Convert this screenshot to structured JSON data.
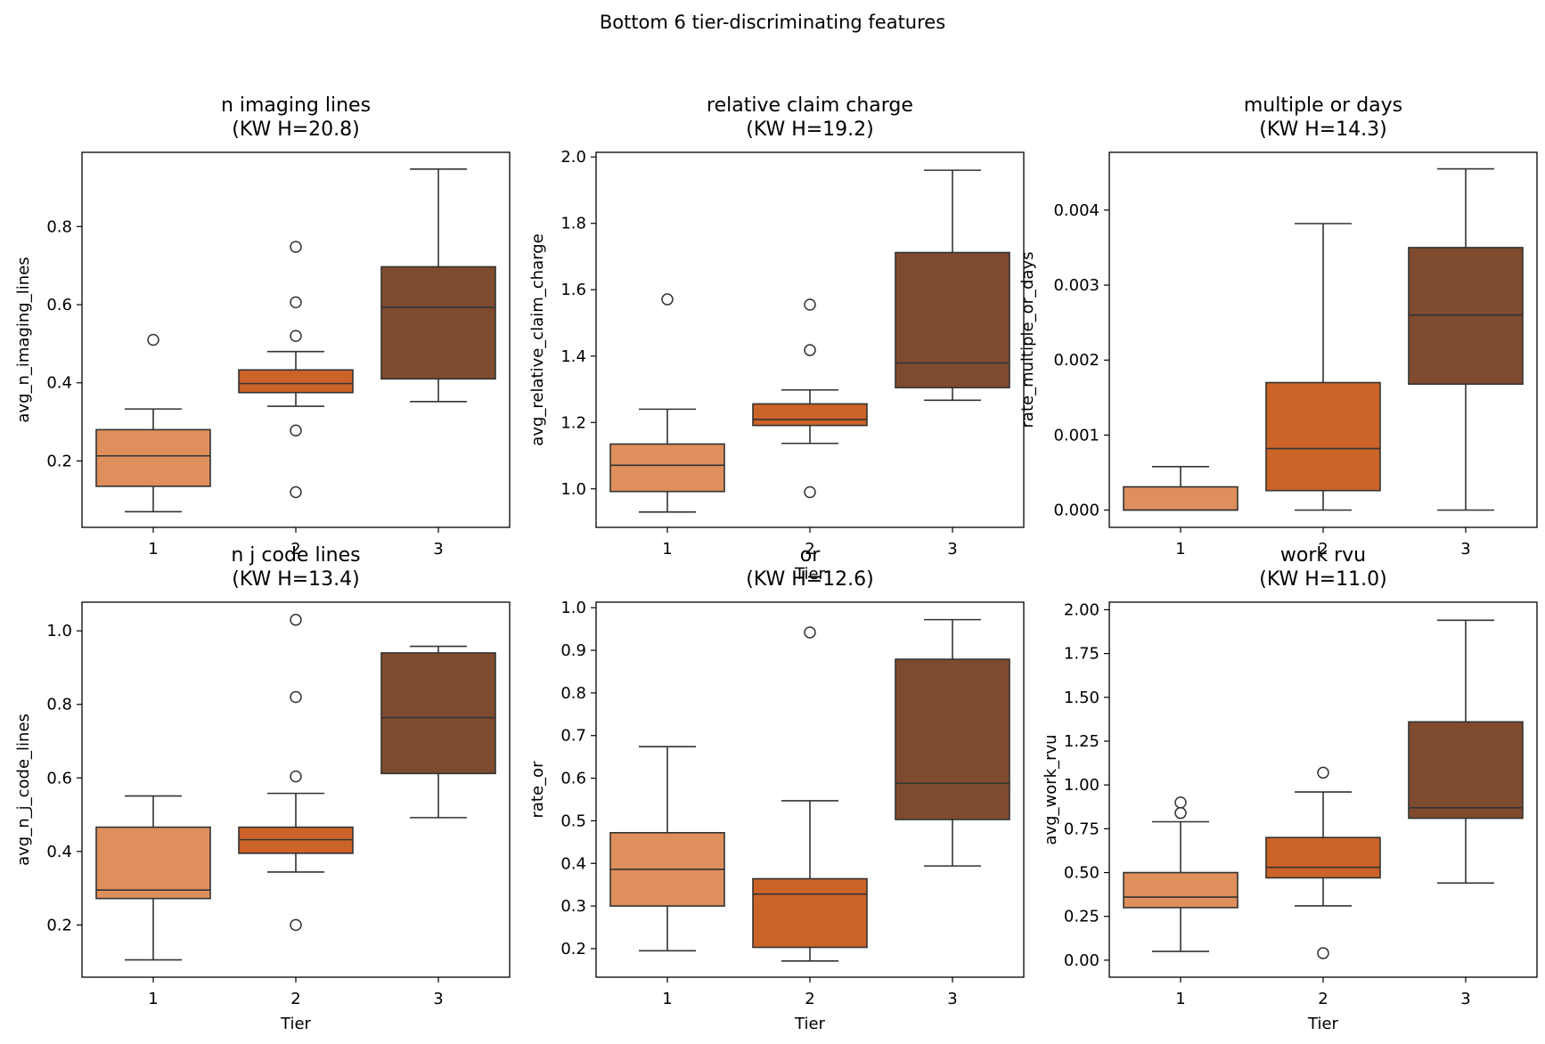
{
  "figure_title": "Bottom 6 tier-discriminating features",
  "colors": {
    "tier1": "#DE8F5C",
    "tier2": "#CC6328",
    "tier3": "#7F4B2E",
    "edge": "#333333"
  },
  "chart_data": [
    {
      "type": "box",
      "title": "n imaging lines",
      "subtitle": "(KW H=20.8)",
      "xlabel": "",
      "ylabel": "avg_n_imaging_lines",
      "categories": [
        "1",
        "2",
        "3"
      ],
      "ylim": [
        0.03,
        0.99
      ],
      "yticks": [
        0.2,
        0.4,
        0.6,
        0.8
      ],
      "ytick_labels": [
        "0.2",
        "0.4",
        "0.6",
        "0.8"
      ],
      "boxes": [
        {
          "tier": "1",
          "whisker_low": 0.07,
          "q1": 0.135,
          "median": 0.213,
          "q3": 0.28,
          "whisker_high": 0.333,
          "outliers": [
            0.51
          ]
        },
        {
          "tier": "2",
          "whisker_low": 0.34,
          "q1": 0.375,
          "median": 0.398,
          "q3": 0.433,
          "whisker_high": 0.48,
          "outliers": [
            0.748,
            0.606,
            0.52,
            0.278,
            0.12
          ]
        },
        {
          "tier": "3",
          "whisker_low": 0.352,
          "q1": 0.41,
          "median": 0.593,
          "q3": 0.697,
          "whisker_high": 0.947,
          "outliers": []
        }
      ]
    },
    {
      "type": "box",
      "title": "relative claim charge",
      "subtitle": "(KW H=19.2)",
      "xlabel": "Tier",
      "ylabel": "avg_relative_claim_charge",
      "categories": [
        "1",
        "2",
        "3"
      ],
      "ylim": [
        0.884,
        2.014
      ],
      "yticks": [
        1.0,
        1.2,
        1.4,
        1.6,
        1.8,
        2.0
      ],
      "ytick_labels": [
        "1.0",
        "1.2",
        "1.4",
        "1.6",
        "1.8",
        "2.0"
      ],
      "boxes": [
        {
          "tier": "1",
          "whisker_low": 0.93,
          "q1": 0.992,
          "median": 1.071,
          "q3": 1.135,
          "whisker_high": 1.24,
          "outliers": [
            1.571
          ]
        },
        {
          "tier": "2",
          "whisker_low": 1.137,
          "q1": 1.191,
          "median": 1.209,
          "q3": 1.256,
          "whisker_high": 1.298,
          "outliers": [
            1.555,
            1.418,
            0.99
          ]
        },
        {
          "tier": "3",
          "whisker_low": 1.267,
          "q1": 1.305,
          "median": 1.379,
          "q3": 1.712,
          "whisker_high": 1.96,
          "outliers": []
        }
      ]
    },
    {
      "type": "box",
      "title": "multiple or days",
      "subtitle": "(KW H=14.3)",
      "xlabel": "",
      "ylabel": "rate_multiple_or_days",
      "categories": [
        "1",
        "2",
        "3"
      ],
      "ylim": [
        -0.00023,
        0.00477
      ],
      "yticks": [
        0,
        0.001,
        0.002,
        0.003,
        0.004
      ],
      "ytick_labels": [
        "0.000",
        "0.001",
        "0.002",
        "0.003",
        "0.004"
      ],
      "boxes": [
        {
          "tier": "1",
          "whisker_low": 0.0,
          "q1": 0.0,
          "median": 0.0,
          "q3": 0.00031,
          "whisker_high": 0.00058,
          "outliers": []
        },
        {
          "tier": "2",
          "whisker_low": 0.0,
          "q1": 0.00026,
          "median": 0.00082,
          "q3": 0.0017,
          "whisker_high": 0.00382,
          "outliers": []
        },
        {
          "tier": "3",
          "whisker_low": 0.0,
          "q1": 0.00168,
          "median": 0.0026,
          "q3": 0.0035,
          "whisker_high": 0.00455,
          "outliers": []
        }
      ]
    },
    {
      "type": "box",
      "title": "n j code lines",
      "subtitle": "(KW H=13.4)",
      "xlabel": "Tier",
      "ylabel": "avg_n_j_code_lines",
      "categories": [
        "1",
        "2",
        "3"
      ],
      "ylim": [
        0.058,
        1.078
      ],
      "yticks": [
        0.2,
        0.4,
        0.6,
        0.8,
        1.0
      ],
      "ytick_labels": [
        "0.2",
        "0.4",
        "0.6",
        "0.8",
        "1.0"
      ],
      "boxes": [
        {
          "tier": "1",
          "whisker_low": 0.105,
          "q1": 0.272,
          "median": 0.295,
          "q3": 0.466,
          "whisker_high": 0.551,
          "outliers": []
        },
        {
          "tier": "2",
          "whisker_low": 0.344,
          "q1": 0.395,
          "median": 0.432,
          "q3": 0.466,
          "whisker_high": 0.558,
          "outliers": [
            1.03,
            0.82,
            0.604,
            0.2
          ]
        },
        {
          "tier": "3",
          "whisker_low": 0.492,
          "q1": 0.612,
          "median": 0.764,
          "q3": 0.94,
          "whisker_high": 0.958,
          "outliers": []
        }
      ]
    },
    {
      "type": "box",
      "title": "or",
      "subtitle": "(KW H=12.6)",
      "xlabel": "Tier",
      "ylabel": "rate_or",
      "categories": [
        "1",
        "2",
        "3"
      ],
      "ylim": [
        0.133,
        1.013
      ],
      "yticks": [
        0.2,
        0.3,
        0.4,
        0.5,
        0.6,
        0.7,
        0.8,
        0.9,
        1.0
      ],
      "ytick_labels": [
        "0.2",
        "0.3",
        "0.4",
        "0.5",
        "0.6",
        "0.7",
        "0.8",
        "0.9",
        "1.0"
      ],
      "boxes": [
        {
          "tier": "1",
          "whisker_low": 0.195,
          "q1": 0.3,
          "median": 0.386,
          "q3": 0.472,
          "whisker_high": 0.674,
          "outliers": []
        },
        {
          "tier": "2",
          "whisker_low": 0.171,
          "q1": 0.203,
          "median": 0.328,
          "q3": 0.364,
          "whisker_high": 0.547,
          "outliers": [
            0.942
          ]
        },
        {
          "tier": "3",
          "whisker_low": 0.394,
          "q1": 0.503,
          "median": 0.588,
          "q3": 0.879,
          "whisker_high": 0.972,
          "outliers": []
        }
      ]
    },
    {
      "type": "box",
      "title": "work rvu",
      "subtitle": "(KW H=11.0)",
      "xlabel": "Tier",
      "ylabel": "avg_work_rvu",
      "categories": [
        "1",
        "2",
        "3"
      ],
      "ylim": [
        -0.097,
        2.043
      ],
      "yticks": [
        0,
        0.25,
        0.5,
        0.75,
        1.0,
        1.25,
        1.5,
        1.75,
        2.0
      ],
      "ytick_labels": [
        "0.00",
        "0.25",
        "0.50",
        "0.75",
        "1.00",
        "1.25",
        "1.50",
        "1.75",
        "2.00"
      ],
      "boxes": [
        {
          "tier": "1",
          "whisker_low": 0.05,
          "q1": 0.3,
          "median": 0.36,
          "q3": 0.5,
          "whisker_high": 0.79,
          "outliers": [
            0.9,
            0.84
          ]
        },
        {
          "tier": "2",
          "whisker_low": 0.31,
          "q1": 0.47,
          "median": 0.53,
          "q3": 0.7,
          "whisker_high": 0.96,
          "outliers": [
            1.07,
            0.04
          ]
        },
        {
          "tier": "3",
          "whisker_low": 0.44,
          "q1": 0.81,
          "median": 0.87,
          "q3": 1.36,
          "whisker_high": 1.94,
          "outliers": []
        }
      ]
    }
  ]
}
